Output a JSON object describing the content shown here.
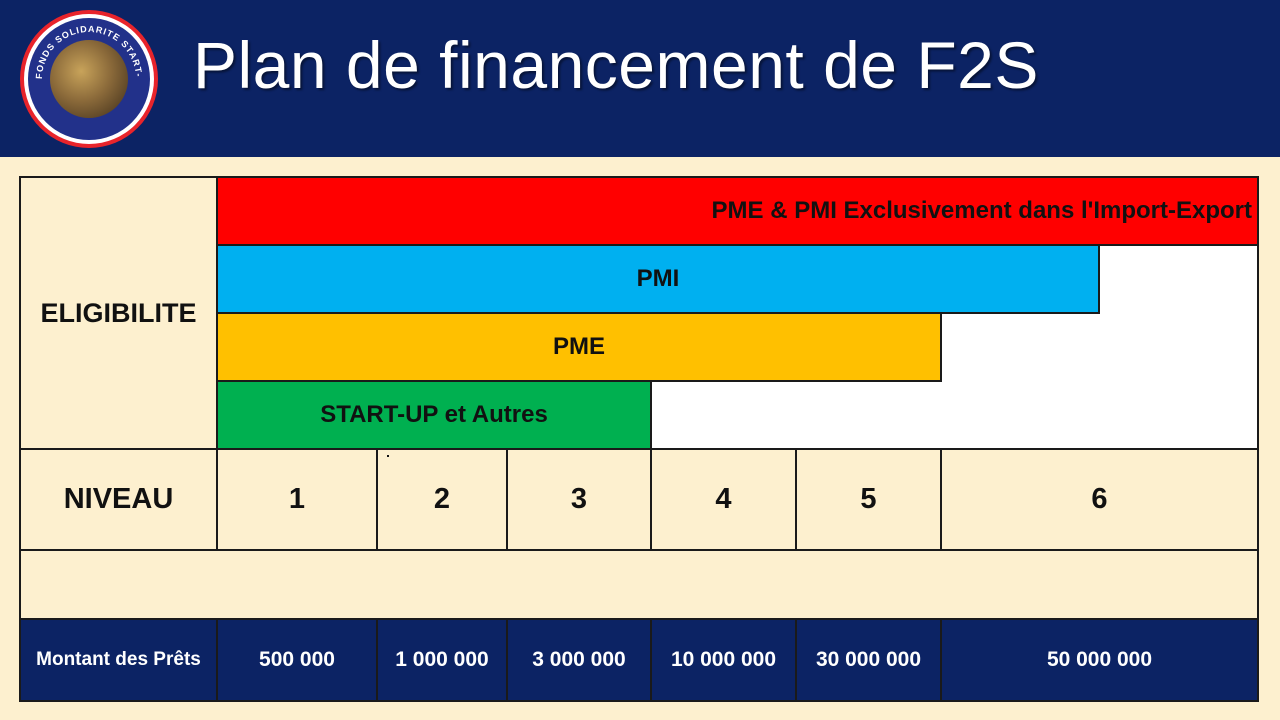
{
  "slide": {
    "title": "Plan de financement de F2S"
  },
  "logo": {
    "text": "FONDS SOLIDARITE START-UP",
    "colors": {
      "ring": "#e8242b",
      "inner": "#22318a"
    }
  },
  "table": {
    "eligibility_label": "ELIGIBILITE",
    "eligibility_bars": [
      {
        "label": "PME & PMI Exclusivement dans l'Import-Export",
        "color": "#ff0000"
      },
      {
        "label": "PMI",
        "color": "#00b0f0"
      },
      {
        "label": "PME",
        "color": "#ffc000"
      },
      {
        "label": "START-UP et Autres",
        "color": "#00b050"
      }
    ],
    "level_label": "NIVEAU",
    "levels": [
      "1",
      "2",
      "3",
      "4",
      "5",
      "6"
    ],
    "amount_label": "Montant des Prêts",
    "amounts": [
      "500 000",
      "1 000 000",
      "3 000 000",
      "10 000 000",
      "30 000 000",
      "50 000 000"
    ]
  },
  "colors": {
    "header_bg": "#0c2364",
    "page_bg": "#fdf0cf",
    "amount_row_bg": "#0c2364"
  }
}
